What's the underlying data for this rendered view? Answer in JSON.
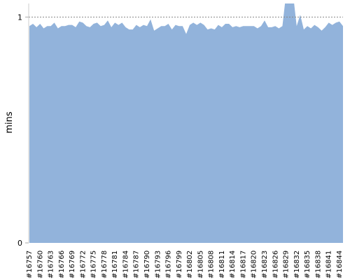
{
  "chart_data": {
    "type": "area",
    "ylabel": "mins",
    "categories": [
      "#16757",
      null,
      null,
      "#16760",
      null,
      null,
      "#16763",
      null,
      null,
      "#16766",
      null,
      null,
      "#16769",
      null,
      null,
      "#16772",
      null,
      null,
      "#16775",
      null,
      null,
      "#16778",
      null,
      null,
      "#16781",
      null,
      null,
      "#16784",
      null,
      null,
      "#16787",
      null,
      null,
      "#16790",
      null,
      null,
      "#16793",
      null,
      null,
      "#16796",
      null,
      null,
      "#16799",
      null,
      null,
      "#16802",
      null,
      null,
      "#16805",
      null,
      null,
      "#16808",
      null,
      null,
      "#16811",
      null,
      null,
      "#16814",
      null,
      null,
      "#16817",
      null,
      null,
      "#16820",
      null,
      null,
      "#16823",
      null,
      null,
      "#16826",
      null,
      null,
      "#16829",
      null,
      null,
      "#16832",
      null,
      null,
      "#16835",
      null,
      null,
      "#16838",
      null,
      null,
      "#16841",
      null,
      null,
      "#16844",
      null
    ],
    "values": [
      0.96,
      0.97,
      0.955,
      0.97,
      0.95,
      0.96,
      0.96,
      0.975,
      0.95,
      0.96,
      0.96,
      0.965,
      0.965,
      0.955,
      0.98,
      0.975,
      0.96,
      0.955,
      0.97,
      0.975,
      0.96,
      0.965,
      0.985,
      0.955,
      0.975,
      0.965,
      0.975,
      0.955,
      0.945,
      0.945,
      0.965,
      0.955,
      0.965,
      0.96,
      0.99,
      0.94,
      0.95,
      0.96,
      0.96,
      0.97,
      0.945,
      0.965,
      0.96,
      0.96,
      0.925,
      0.965,
      0.975,
      0.965,
      0.975,
      0.965,
      0.945,
      0.95,
      0.945,
      0.965,
      0.955,
      0.97,
      0.97,
      0.955,
      0.96,
      0.955,
      0.96,
      0.96,
      0.96,
      0.96,
      0.95,
      0.96,
      0.985,
      0.955,
      0.955,
      0.96,
      0.95,
      0.96,
      1.1,
      1.1,
      1.1,
      0.96,
      1.01,
      0.945,
      0.96,
      0.95,
      0.965,
      0.955,
      0.94,
      0.955,
      0.975,
      0.965,
      0.975,
      0.98,
      0.96
    ],
    "color": "#92b3db",
    "ylim": [
      0,
      1.06
    ],
    "yticks": [
      0,
      1
    ],
    "grid": true
  }
}
